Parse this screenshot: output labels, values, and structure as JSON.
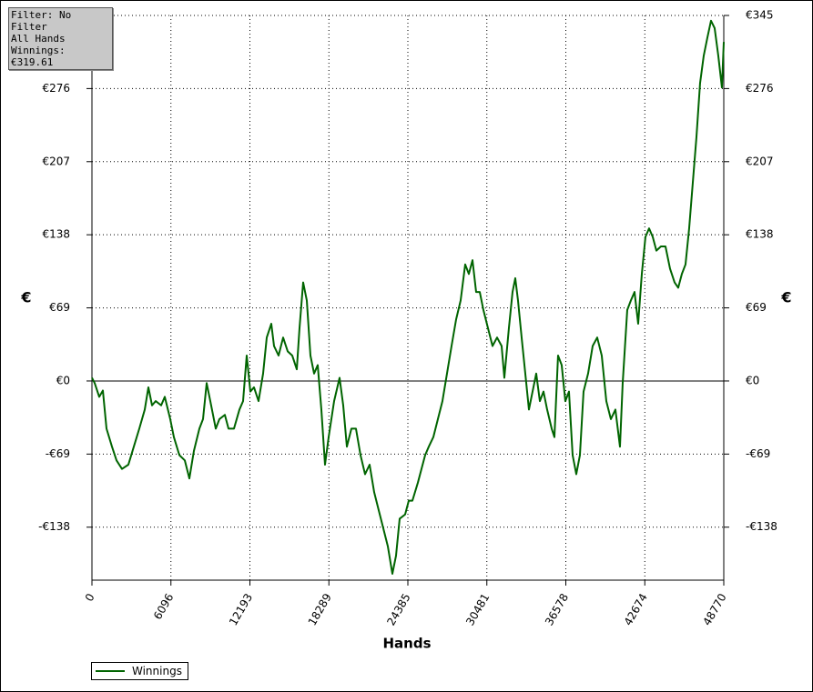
{
  "chart_data": {
    "type": "line",
    "filter_text": "Filter: No Filter",
    "hands_text": "All Hands",
    "winnings_text": "Winnings: €319.61",
    "x_label": "Hands",
    "y_label": "€",
    "grid": true,
    "xlim": [
      0,
      48770
    ],
    "xticks": [
      0,
      6096,
      12193,
      18289,
      24385,
      30481,
      36578,
      42674,
      48770
    ],
    "ylim": [
      -188,
      345
    ],
    "yticks": [
      {
        "value": -138,
        "label": "-€138"
      },
      {
        "value": -69,
        "label": "-€69"
      },
      {
        "value": 0,
        "label": "€0"
      },
      {
        "value": 69,
        "label": "€69"
      },
      {
        "value": 138,
        "label": "€138"
      },
      {
        "value": 207,
        "label": "€207"
      },
      {
        "value": 276,
        "label": "€276"
      },
      {
        "value": 345,
        "label": "€345"
      }
    ],
    "x": [
      0,
      211,
      562,
      843,
      1124,
      1546,
      1897,
      2319,
      2811,
      3232,
      3654,
      4076,
      4357,
      4638,
      4919,
      5341,
      5622,
      6043,
      6324,
      6746,
      7168,
      7519,
      7870,
      8292,
      8573,
      8854,
      9135,
      9557,
      9838,
      10259,
      10541,
      10962,
      11384,
      11665,
      11946,
      12227,
      12508,
      12859,
      13211,
      13492,
      13843,
      14054,
      14405,
      14757,
      15108,
      15459,
      15811,
      16022,
      16303,
      16584,
      16865,
      17146,
      17427,
      17708,
      17989,
      18270,
      18692,
      19113,
      19395,
      19676,
      20027,
      20378,
      20730,
      21081,
      21432,
      21784,
      22135,
      22486,
      22838,
      23189,
      23470,
      23751,
      24173,
      24454,
      24735,
      25157,
      25438,
      25719,
      26000,
      26351,
      26703,
      27054,
      27405,
      27757,
      28108,
      28459,
      28811,
      29092,
      29373,
      29654,
      29935,
      30216,
      30567,
      30919,
      31270,
      31622,
      31832,
      32184,
      32465,
      32676,
      32886,
      33167,
      33449,
      33730,
      34011,
      34292,
      34573,
      34854,
      35135,
      35486,
      35697,
      35978,
      36259,
      36540,
      36821,
      37103,
      37384,
      37665,
      37946,
      38297,
      38649,
      39000,
      39351,
      39703,
      40054,
      40405,
      40757,
      40967,
      41319,
      41600,
      41881,
      42162,
      42443,
      42724,
      43005,
      43286,
      43567,
      43919,
      44270,
      44621,
      44973,
      45254,
      45535,
      45816,
      46097,
      46378,
      46659,
      46940,
      47222,
      47503,
      47784,
      48065,
      48346,
      48627,
      48770
    ],
    "series": [
      {
        "name": "Winnings",
        "color": "#006400",
        "values": [
          3,
          -2,
          -15,
          -9,
          -45,
          -62,
          -75,
          -83,
          -79,
          -62,
          -45,
          -27,
          -6,
          -23,
          -19,
          -23,
          -15,
          -36,
          -53,
          -70,
          -75,
          -92,
          -66,
          -45,
          -36,
          -2,
          -19,
          -45,
          -36,
          -32,
          -45,
          -45,
          -27,
          -19,
          24,
          -10,
          -6,
          -19,
          7,
          41,
          54,
          33,
          24,
          41,
          28,
          24,
          11,
          50,
          93,
          76,
          24,
          7,
          15,
          -27,
          -79,
          -53,
          -19,
          3,
          -23,
          -62,
          -45,
          -45,
          -70,
          -88,
          -79,
          -105,
          -122,
          -139,
          -156,
          -182,
          -165,
          -130,
          -126,
          -113,
          -113,
          -96,
          -83,
          -70,
          -62,
          -53,
          -36,
          -19,
          7,
          33,
          58,
          76,
          110,
          101,
          114,
          84,
          84,
          67,
          50,
          33,
          41,
          33,
          3,
          50,
          84,
          97,
          76,
          41,
          7,
          -27,
          -10,
          7,
          -19,
          -10,
          -27,
          -45,
          -53,
          24,
          15,
          -19,
          -10,
          -70,
          -88,
          -70,
          -10,
          7,
          33,
          41,
          24,
          -19,
          -36,
          -27,
          -62,
          -2,
          67,
          76,
          84,
          54,
          101,
          136,
          144,
          136,
          123,
          127,
          127,
          106,
          93,
          88,
          101,
          110,
          144,
          187,
          230,
          281,
          307,
          324,
          340,
          333,
          307,
          277,
          320
        ]
      }
    ]
  }
}
